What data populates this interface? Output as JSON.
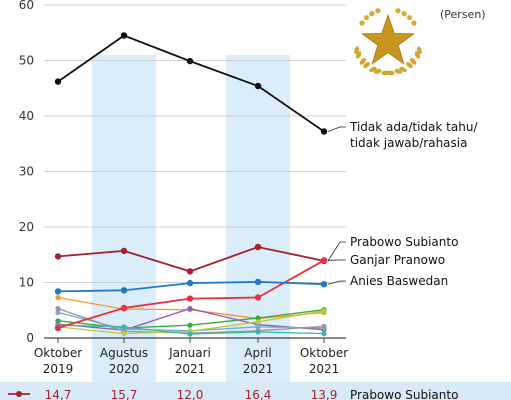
{
  "chart_data": {
    "type": "line",
    "unit": "(Persen)",
    "x": [
      "Oktober 2019",
      "Agustus 2020",
      "Januari 2021",
      "April 2021",
      "Oktober 2021"
    ],
    "x_lines": [
      [
        "Oktober",
        "2019"
      ],
      [
        "Agustus",
        "2020"
      ],
      [
        "Januari",
        "2021"
      ],
      [
        "April",
        "2021"
      ],
      [
        "Oktober",
        "2021"
      ]
    ],
    "highlighted_x": [
      "Agustus 2020",
      "April 2021"
    ],
    "ylim": [
      0,
      60
    ],
    "yticks": [
      "0",
      "10",
      "20",
      "30",
      "40",
      "50",
      "60"
    ],
    "grid": true,
    "series": [
      {
        "name": "Tidak ada/tidak tahu/ tidak jawab/rahasia",
        "name_lines": [
          "Tidak ada/tidak tahu/",
          "tidak jawab/rahasia"
        ],
        "color": "#111111",
        "values": [
          46.2,
          54.5,
          49.9,
          45.4,
          37.2
        ],
        "labeled": true
      },
      {
        "name": "Prabowo Subianto",
        "color": "#a3202e",
        "values": [
          14.7,
          15.7,
          12.0,
          16.4,
          13.9
        ],
        "labeled": true
      },
      {
        "name": "Ganjar Pranowo",
        "color": "#e8303f",
        "values": [
          1.8,
          5.4,
          7.1,
          7.3,
          14.0
        ],
        "labeled": true
      },
      {
        "name": "Anies Baswedan",
        "color": "#1f78c8",
        "values": [
          8.4,
          8.6,
          9.9,
          10.1,
          9.7
        ],
        "labeled": true
      },
      {
        "name": "",
        "color": "#f39a2c",
        "values": [
          7.3,
          5.2,
          5.1,
          3.5,
          4.6
        ],
        "labeled": false
      },
      {
        "name": "",
        "color": "#3aaa3a",
        "values": [
          3.1,
          1.8,
          2.3,
          3.6,
          5.1
        ],
        "labeled": false
      },
      {
        "name": "",
        "color": "#9b59b6",
        "values": [
          2.5,
          1.4,
          5.3,
          2.4,
          1.5
        ],
        "labeled": false
      },
      {
        "name": "",
        "color": "#7aa9d9",
        "values": [
          4.6,
          1.6,
          1.3,
          2.0,
          1.8
        ],
        "labeled": false
      },
      {
        "name": "",
        "color": "#999999",
        "values": [
          5.3,
          1.2,
          0.9,
          1.3,
          2.1
        ],
        "labeled": false
      },
      {
        "name": "",
        "color": "#b8cc3a",
        "values": [
          2.0,
          0.8,
          1.2,
          2.9,
          4.9
        ],
        "labeled": false
      },
      {
        "name": "",
        "color": "#36b8a8",
        "values": [
          2.3,
          2.0,
          0.7,
          1.1,
          0.8
        ],
        "labeled": false
      }
    ],
    "table_row": {
      "name": "Prabowo Subianto",
      "color": "#a3202e",
      "values": [
        "14,7",
        "15,7",
        "12,0",
        "16,4",
        "13,9"
      ]
    }
  }
}
